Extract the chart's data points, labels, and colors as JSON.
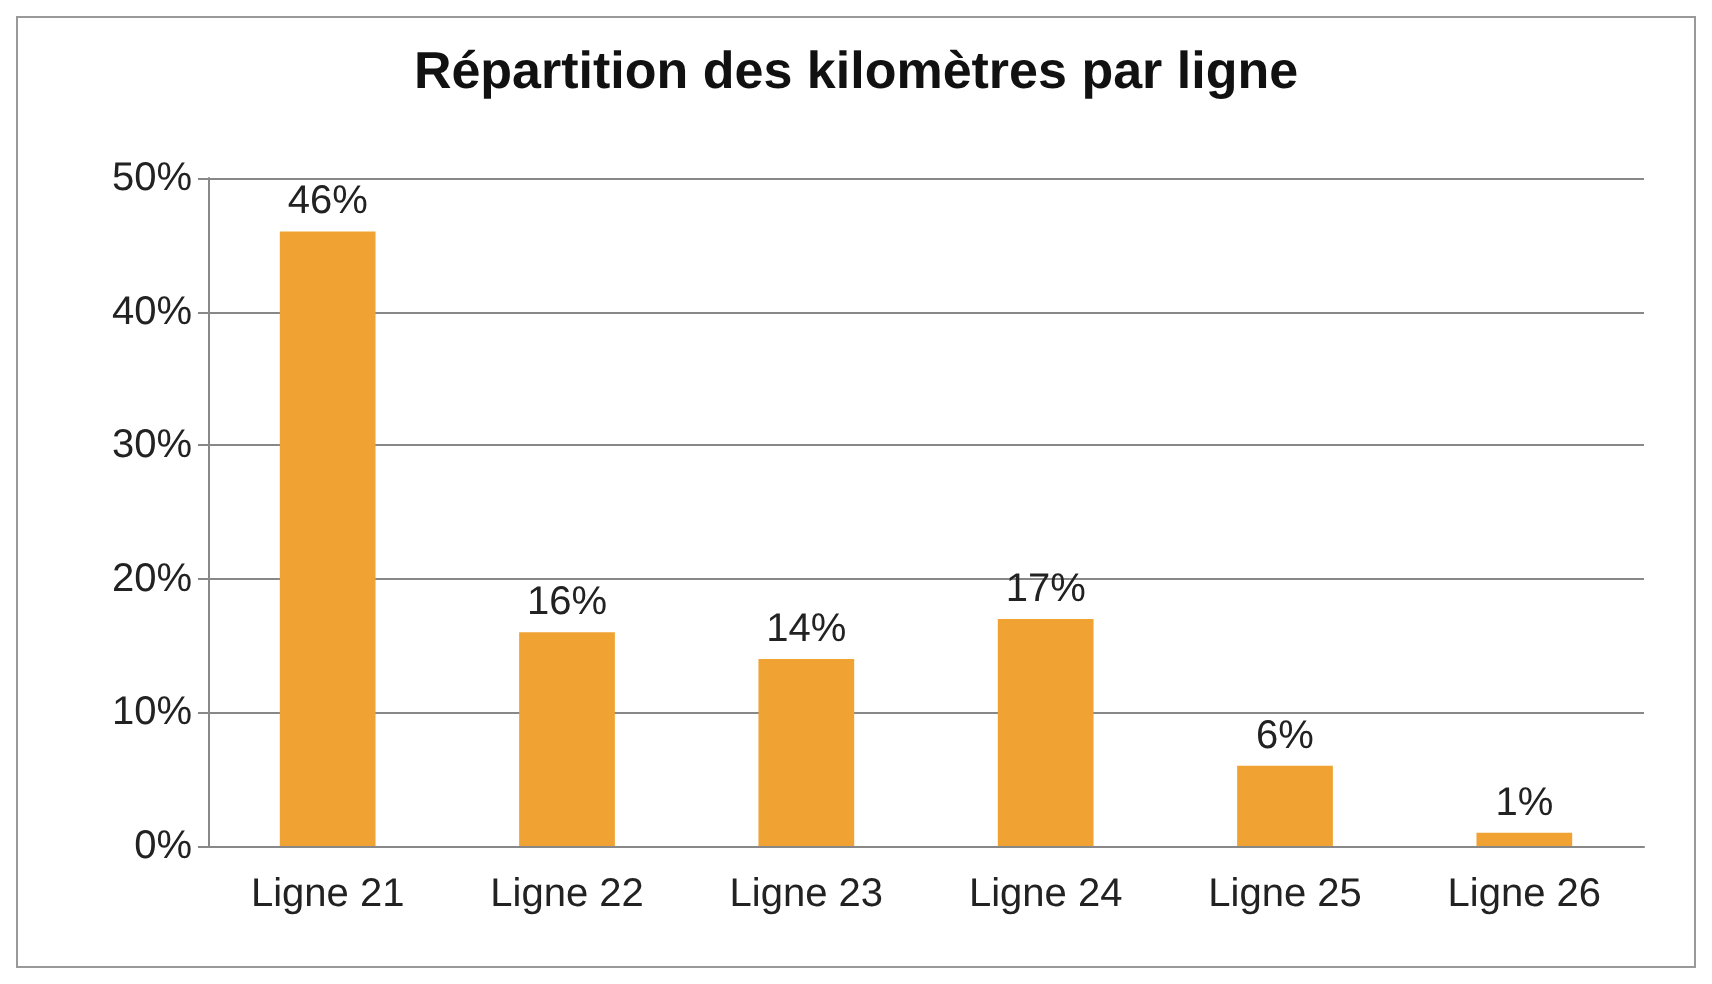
{
  "chart_data": {
    "type": "bar",
    "title": "Répartition des kilomètres par ligne",
    "categories": [
      "Ligne 21",
      "Ligne 22",
      "Ligne 23",
      "Ligne 24",
      "Ligne 25",
      "Ligne 26"
    ],
    "values": [
      46,
      16,
      14,
      17,
      6,
      1
    ],
    "value_labels": [
      "46%",
      "16%",
      "14%",
      "17%",
      "6%",
      "1%"
    ],
    "color": "#f0a332",
    "ylim": [
      0,
      50
    ],
    "yticks": [
      {
        "value": 0,
        "label": "0%"
      },
      {
        "value": 10,
        "label": "10%"
      },
      {
        "value": 20,
        "label": "20%"
      },
      {
        "value": 30,
        "label": "30%"
      },
      {
        "value": 40,
        "label": "40%"
      },
      {
        "value": 50,
        "label": "50%"
      }
    ],
    "grid": "y"
  }
}
